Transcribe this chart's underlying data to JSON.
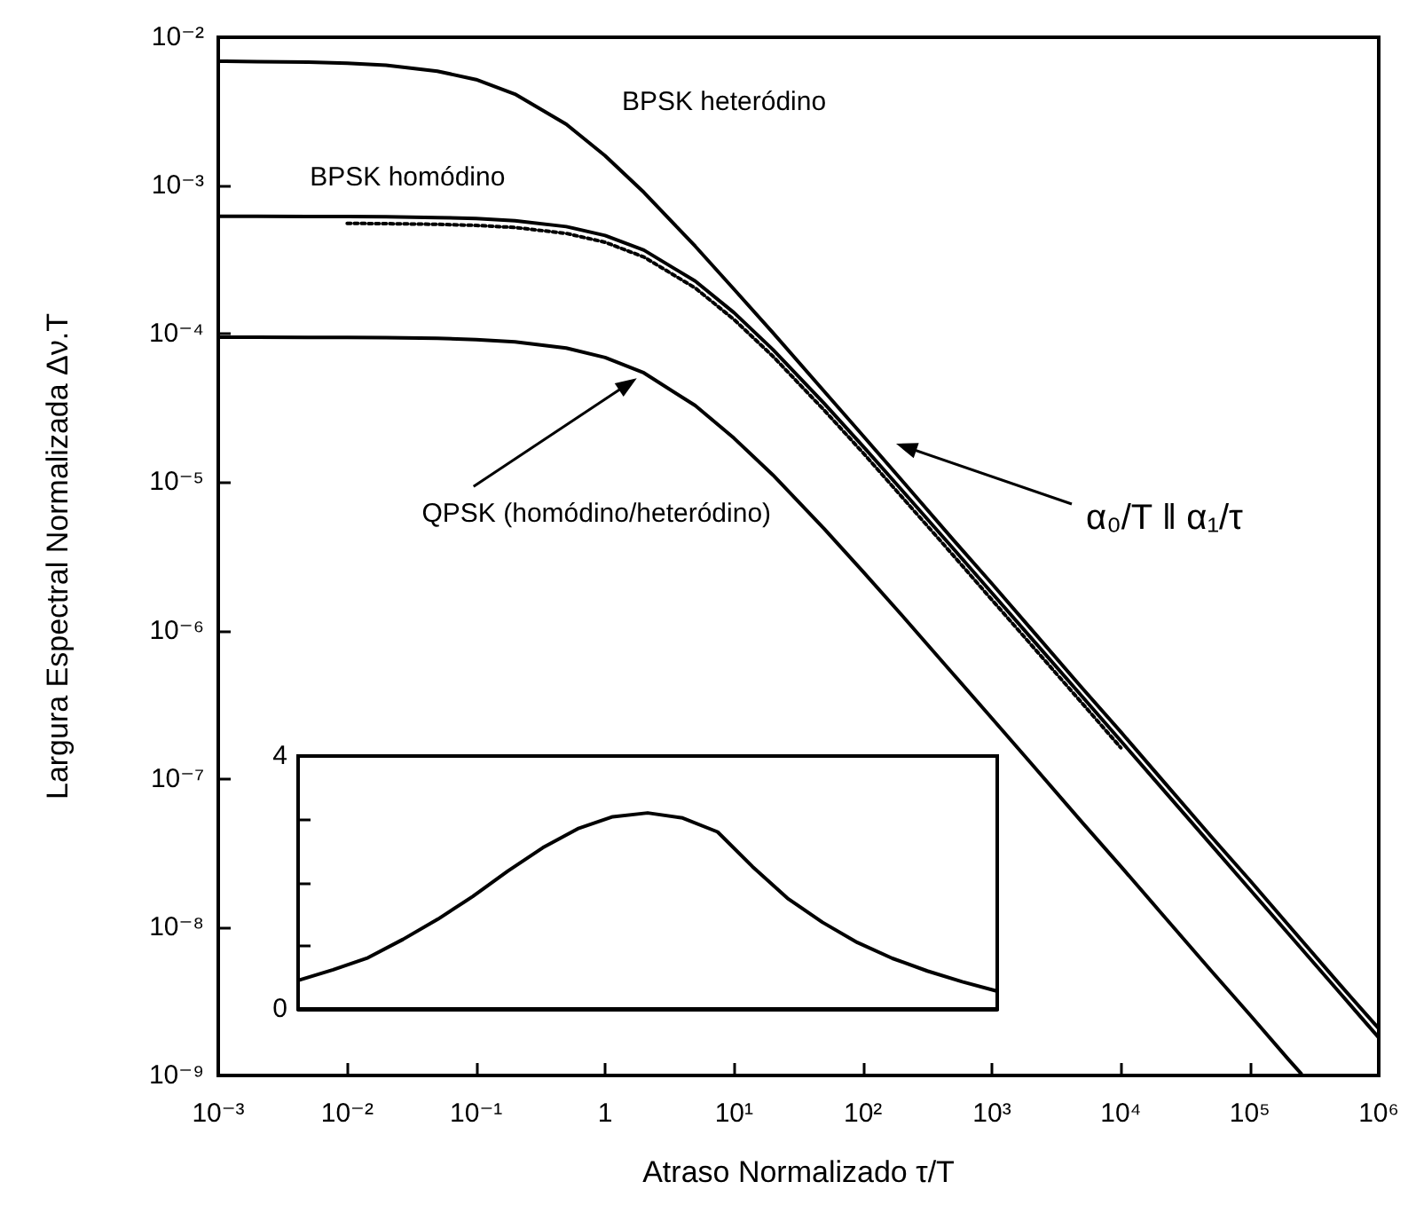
{
  "chart_data": [
    {
      "type": "line",
      "xlabel": "Atraso Normalizado τ/T",
      "ylabel": "Largura Espectral Normalizada Δν.T",
      "log": "xy",
      "grid": false,
      "legend": false,
      "marker": "none",
      "x": [
        0.001,
        0.002,
        0.005,
        0.01,
        0.02,
        0.05,
        0.1,
        0.2,
        0.5,
        1,
        2,
        5,
        10,
        20,
        50,
        100,
        200,
        500,
        1000,
        2000,
        5000,
        10000,
        20000,
        50000,
        100000,
        200000,
        500000,
        1000000
      ],
      "xlim": [
        0.001,
        1000000
      ],
      "xticks": [
        {
          "value": 0.001,
          "label": "10⁻³"
        },
        {
          "value": 0.01,
          "label": "10⁻²"
        },
        {
          "value": 0.1,
          "label": "10⁻¹"
        },
        1,
        {
          "value": 10,
          "label": "10¹"
        },
        {
          "value": 100,
          "label": "10²"
        },
        {
          "value": 1000,
          "label": "10³"
        },
        {
          "value": 10000,
          "label": "10⁴"
        },
        {
          "value": 100000,
          "label": "10⁵"
        },
        {
          "value": 1000000,
          "label": "10⁶"
        }
      ],
      "ylim": [
        1e-09,
        0.01
      ],
      "yticks": [
        {
          "value": 1e-09,
          "label": "10⁻⁹"
        },
        {
          "value": 1e-08,
          "label": "10⁻⁸"
        },
        {
          "value": 1e-07,
          "label": "10⁻⁷"
        },
        {
          "value": 1e-06,
          "label": "10⁻⁶"
        },
        {
          "value": 1e-05,
          "label": "10⁻⁵"
        },
        {
          "value": 0.0001,
          "label": "10⁻⁴"
        },
        {
          "value": 0.001,
          "label": "10⁻³"
        },
        {
          "value": 0.01,
          "label": "10⁻²"
        }
      ],
      "series": [
        {
          "name": "BPSK heteródino",
          "color": "#000000",
          "line_style": "solid",
          "values": [
            0.0069,
            0.00685,
            0.00679,
            0.00668,
            0.00647,
            0.00591,
            0.00518,
            0.00414,
            0.00259,
            0.00159,
            0.0009,
            0.00039,
            0.0002,
            0.000102,
            4.1e-05,
            2.06e-05,
            1.03e-05,
            4.1e-06,
            2.07e-06,
            1.03e-06,
            4.1e-07,
            2.07e-07,
            1.03e-07,
            4.1e-08,
            2.07e-08,
            1.03e-08,
            4.1e-09,
            2.07e-09
          ]
        },
        {
          "name": "BPSK homódino",
          "color": "#000000",
          "line_style": "solid",
          "values": [
            0.00062,
            0.00062,
            0.000619,
            0.000618,
            0.000616,
            0.000609,
            0.000599,
            0.00058,
            0.000529,
            0.000461,
            0.000367,
            0.000227,
            0.000139,
            7.85e-05,
            3.4e-05,
            1.75e-05,
            8.86e-06,
            3.58e-06,
            1.79e-06,
            8.98e-07,
            3.6e-07,
            1.8e-07,
            9e-08,
            3.6e-08,
            1.8e-08,
            9e-09,
            3.6e-09,
            1.8e-09
          ]
        },
        {
          "color": "#000000",
          "line_style": "dotted",
          "x": [
            0.01,
            0.02,
            0.05,
            0.1,
            0.2,
            0.5,
            1,
            2,
            5,
            10,
            20,
            50,
            100,
            200,
            500,
            1000,
            2000,
            5000,
            10000
          ],
          "values": [
            0.000556,
            0.000554,
            0.000548,
            0.000539,
            0.000522,
            0.000476,
            0.000415,
            0.00033,
            0.000204,
            0.000125,
            7.07e-05,
            3.06e-05,
            1.58e-05,
            7.97e-06,
            3.22e-06,
            1.61e-06,
            8.08e-07,
            3.24e-07,
            1.62e-07
          ]
        },
        {
          "name": "QPSK (homódino/heteródino)",
          "color": "#000000",
          "line_style": "solid",
          "x": [
            0.001,
            0.002,
            0.005,
            0.01,
            0.02,
            0.05,
            0.1,
            0.2,
            0.5,
            1,
            2,
            5,
            10,
            20,
            50,
            100,
            200,
            500,
            1000,
            2000,
            5000,
            10000,
            20000,
            50000,
            100000,
            200000,
            250000
          ],
          "values": [
            9.5e-05,
            9.5e-05,
            9.48e-05,
            9.46e-05,
            9.43e-05,
            9.33e-05,
            9.16e-05,
            8.84e-05,
            8.02e-05,
            6.93e-05,
            5.46e-05,
            3.29e-05,
            1.98e-05,
            1.12e-05,
            4.86e-06,
            2.5e-06,
            1.27e-06,
            5.1e-07,
            2.56e-07,
            1.28e-07,
            5.1e-08,
            2.57e-08,
            1.28e-08,
            5.1e-09,
            2.57e-09,
            1.28e-09,
            1.03e-09
          ]
        }
      ],
      "annotations": [
        "α₀/T ‖ α₁/τ"
      ]
    },
    {
      "type": "line",
      "grid": false,
      "legend": false,
      "marker": "none",
      "tick_labels": "y",
      "categories": [
        null,
        null,
        null,
        null,
        null,
        null,
        null,
        null,
        null,
        null,
        null,
        null,
        null,
        null,
        null,
        null,
        null,
        null,
        null,
        null,
        null
      ],
      "ylim": [
        0,
        4
      ],
      "yticks": [
        0,
        {
          "value": 1,
          "label": null
        },
        {
          "value": 2,
          "label": null
        },
        {
          "value": 3,
          "label": null
        },
        4
      ],
      "series": [
        {
          "color": "#000000",
          "line_style": "solid",
          "values": [
            0.45,
            0.62,
            0.81,
            1.1,
            1.42,
            1.78,
            2.18,
            2.55,
            2.85,
            3.04,
            3.1,
            3.02,
            2.8,
            2.25,
            1.75,
            1.37,
            1.05,
            0.8,
            0.6,
            0.43,
            0.28
          ]
        }
      ]
    }
  ]
}
